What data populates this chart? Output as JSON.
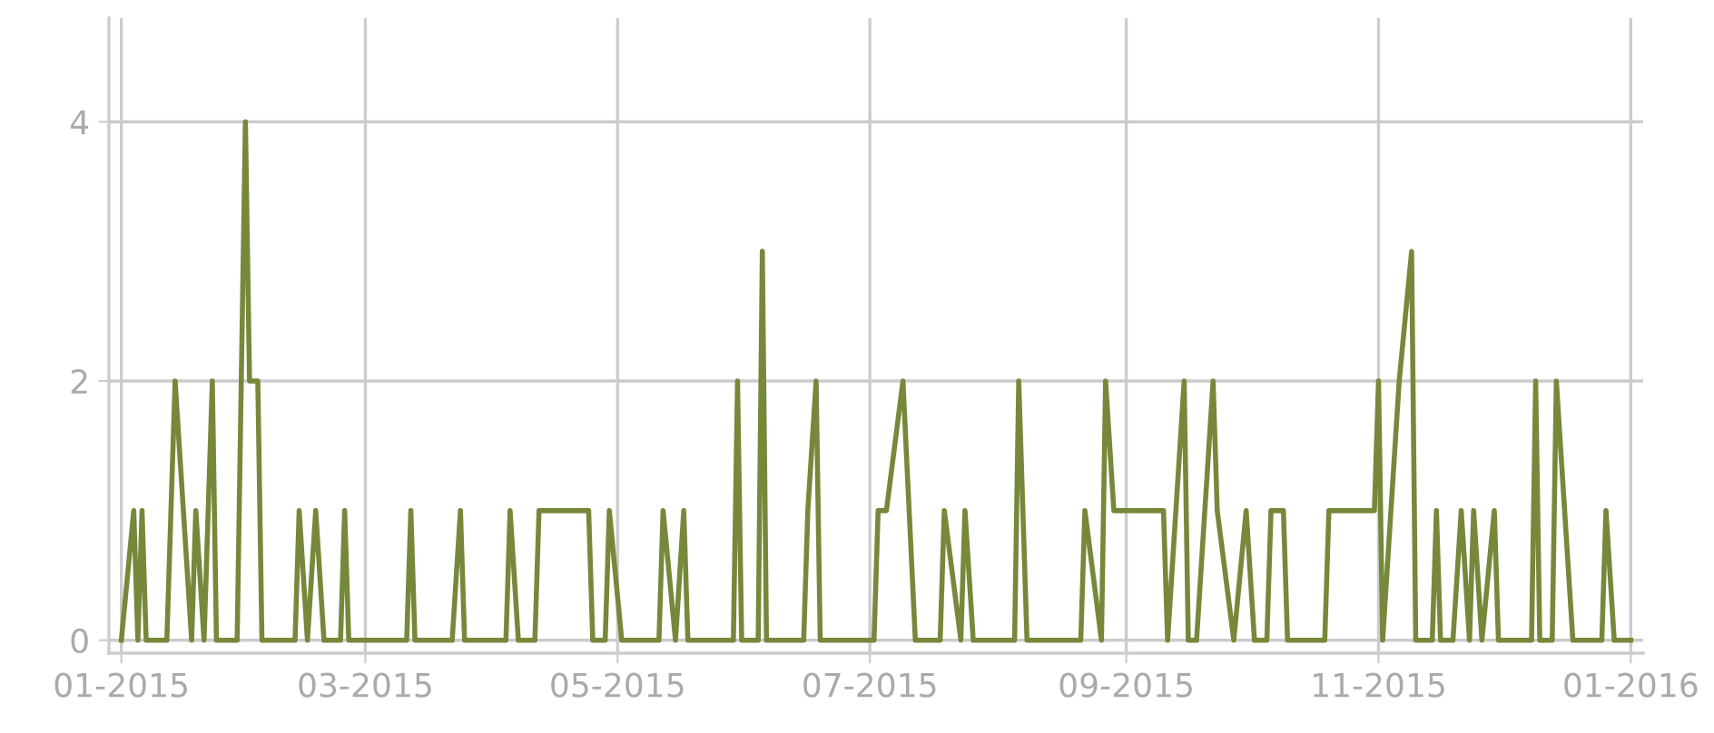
{
  "chart_data": {
    "type": "line",
    "x": [
      "2015-01-01",
      "2015-01-04",
      "2015-01-05",
      "2015-01-06",
      "2015-01-07",
      "2015-01-12",
      "2015-01-14",
      "2015-01-18",
      "2015-01-19",
      "2015-01-21",
      "2015-01-23",
      "2015-01-24",
      "2015-01-29",
      "2015-01-31",
      "2015-02-01",
      "2015-02-03",
      "2015-02-04",
      "2015-02-12",
      "2015-02-13",
      "2015-02-15",
      "2015-02-17",
      "2015-02-19",
      "2015-02-23",
      "2015-02-24",
      "2015-02-25",
      "2015-03-11",
      "2015-03-12",
      "2015-03-13",
      "2015-03-22",
      "2015-03-24",
      "2015-03-25",
      "2015-04-04",
      "2015-04-05",
      "2015-04-07",
      "2015-04-11",
      "2015-04-12",
      "2015-04-24",
      "2015-04-25",
      "2015-04-28",
      "2015-04-29",
      "2015-05-02",
      "2015-05-11",
      "2015-05-12",
      "2015-05-15",
      "2015-05-17",
      "2015-05-18",
      "2015-05-29",
      "2015-05-30",
      "2015-05-31",
      "2015-06-04",
      "2015-06-05",
      "2015-06-06",
      "2015-06-15",
      "2015-06-16",
      "2015-06-18",
      "2015-06-19",
      "2015-07-02",
      "2015-07-03",
      "2015-07-05",
      "2015-07-09",
      "2015-07-12",
      "2015-07-18",
      "2015-07-19",
      "2015-07-23",
      "2015-07-24",
      "2015-07-26",
      "2015-08-05",
      "2015-08-06",
      "2015-08-08",
      "2015-08-21",
      "2015-08-22",
      "2015-08-26",
      "2015-08-27",
      "2015-08-29",
      "2015-09-10",
      "2015-09-11",
      "2015-09-15",
      "2015-09-16",
      "2015-09-18",
      "2015-09-22",
      "2015-09-23",
      "2015-09-27",
      "2015-09-30",
      "2015-10-02",
      "2015-10-05",
      "2015-10-06",
      "2015-10-09",
      "2015-10-10",
      "2015-10-19",
      "2015-10-20",
      "2015-10-31",
      "2015-11-01",
      "2015-11-02",
      "2015-11-06",
      "2015-11-09",
      "2015-11-10",
      "2015-11-14",
      "2015-11-15",
      "2015-11-16",
      "2015-11-19",
      "2015-11-21",
      "2015-11-23",
      "2015-11-24",
      "2015-11-26",
      "2015-11-29",
      "2015-11-30",
      "2015-12-08",
      "2015-12-09",
      "2015-12-10",
      "2015-12-13",
      "2015-12-14",
      "2015-12-18",
      "2015-12-25",
      "2015-12-26",
      "2015-12-28",
      "2016-01-01"
    ],
    "series": [
      {
        "color": "#76883a",
        "values": [
          0,
          1,
          0,
          1,
          0,
          0,
          2,
          0,
          1,
          0,
          2,
          0,
          0,
          4,
          2,
          2,
          0,
          0,
          1,
          0,
          1,
          0,
          0,
          1,
          0,
          0,
          1,
          0,
          0,
          1,
          0,
          0,
          1,
          0,
          0,
          1,
          1,
          0,
          0,
          1,
          0,
          0,
          1,
          0,
          1,
          0,
          0,
          2,
          0,
          0,
          3,
          0,
          0,
          1,
          2,
          0,
          0,
          1,
          1,
          2,
          0,
          0,
          1,
          0,
          1,
          0,
          0,
          2,
          0,
          0,
          1,
          0,
          2,
          1,
          1,
          0,
          2,
          0,
          0,
          2,
          1,
          0,
          1,
          0,
          0,
          1,
          1,
          0,
          0,
          1,
          1,
          2,
          0,
          2,
          3,
          0,
          0,
          1,
          0,
          0,
          1,
          0,
          1,
          0,
          1,
          0,
          0,
          2,
          0,
          0,
          2,
          0,
          0,
          1,
          0,
          0
        ]
      }
    ],
    "xlim": [
      "2014-12-29",
      "2016-01-04"
    ],
    "xticks": [
      {
        "value": "2015-01-01",
        "label": "01-2015"
      },
      {
        "value": "2015-03-01",
        "label": "03-2015"
      },
      {
        "value": "2015-05-01",
        "label": "05-2015"
      },
      {
        "value": "2015-07-01",
        "label": "07-2015"
      },
      {
        "value": "2015-09-01",
        "label": "09-2015"
      },
      {
        "value": "2015-11-01",
        "label": "11-2015"
      },
      {
        "value": "2016-01-01",
        "label": "01-2016"
      }
    ],
    "ylim": [
      -0.1,
      4.8
    ],
    "yticks": [
      0,
      2,
      4
    ],
    "grid": true,
    "marker": "none",
    "line_style": "solid"
  }
}
